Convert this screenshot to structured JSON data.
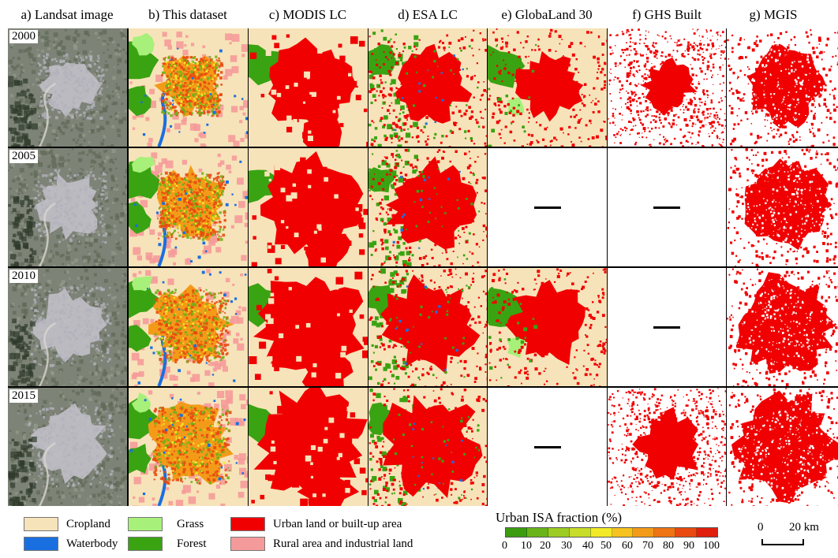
{
  "columns": [
    {
      "key": "landsat",
      "title": "a) Landsat image"
    },
    {
      "key": "thisdata",
      "title": "b) This dataset"
    },
    {
      "key": "modis",
      "title": "c) MODIS LC"
    },
    {
      "key": "esa",
      "title": "d) ESA LC"
    },
    {
      "key": "globaland",
      "title": "e) GlobaLand 30"
    },
    {
      "key": "ghs",
      "title": "f) GHS Built"
    },
    {
      "key": "mgis",
      "title": "g) MGIS"
    }
  ],
  "rows": [
    {
      "year": "2000",
      "available": [
        true,
        true,
        true,
        true,
        true,
        true,
        true
      ]
    },
    {
      "year": "2005",
      "available": [
        true,
        true,
        true,
        true,
        false,
        false,
        true
      ]
    },
    {
      "year": "2010",
      "available": [
        true,
        true,
        true,
        true,
        true,
        false,
        true
      ]
    },
    {
      "year": "2015",
      "available": [
        true,
        true,
        true,
        true,
        false,
        true,
        true
      ]
    }
  ],
  "legend": {
    "classes": [
      {
        "label": "Cropland",
        "color": "#f7e3b9"
      },
      {
        "label": "Waterbody",
        "color": "#1a6fe0"
      },
      {
        "label": "Grass",
        "color": "#a7f07a"
      },
      {
        "label": "Forest",
        "color": "#3aa312"
      },
      {
        "label": "Urban land or built-up area",
        "color": "#f00000"
      },
      {
        "label": "Rural area and industrial land",
        "color": "#f59a9a"
      }
    ],
    "isa_title": "Urban ISA fraction (%)",
    "isa_colors": [
      "#3b9c10",
      "#6ab41a",
      "#9ccb23",
      "#c8dd2a",
      "#f2ea27",
      "#f6c21f",
      "#f39b19",
      "#ee7414",
      "#e84a10",
      "#e0200c"
    ],
    "isa_ticks": [
      "0",
      "10",
      "20",
      "30",
      "40",
      "50",
      "60",
      "70",
      "80",
      "90",
      "100"
    ],
    "scale": {
      "start": "0",
      "end": "20 km"
    }
  },
  "map_colors": {
    "cropland": "#f7e3b9",
    "urban": "#f00000",
    "forest": "#3aa312",
    "grass": "#a7f07a",
    "water": "#1a6fe0",
    "rural": "#f59a9a",
    "landsat_base": "#7d8377",
    "landsat_city": "#c2c0c8",
    "white": "#ffffff"
  }
}
